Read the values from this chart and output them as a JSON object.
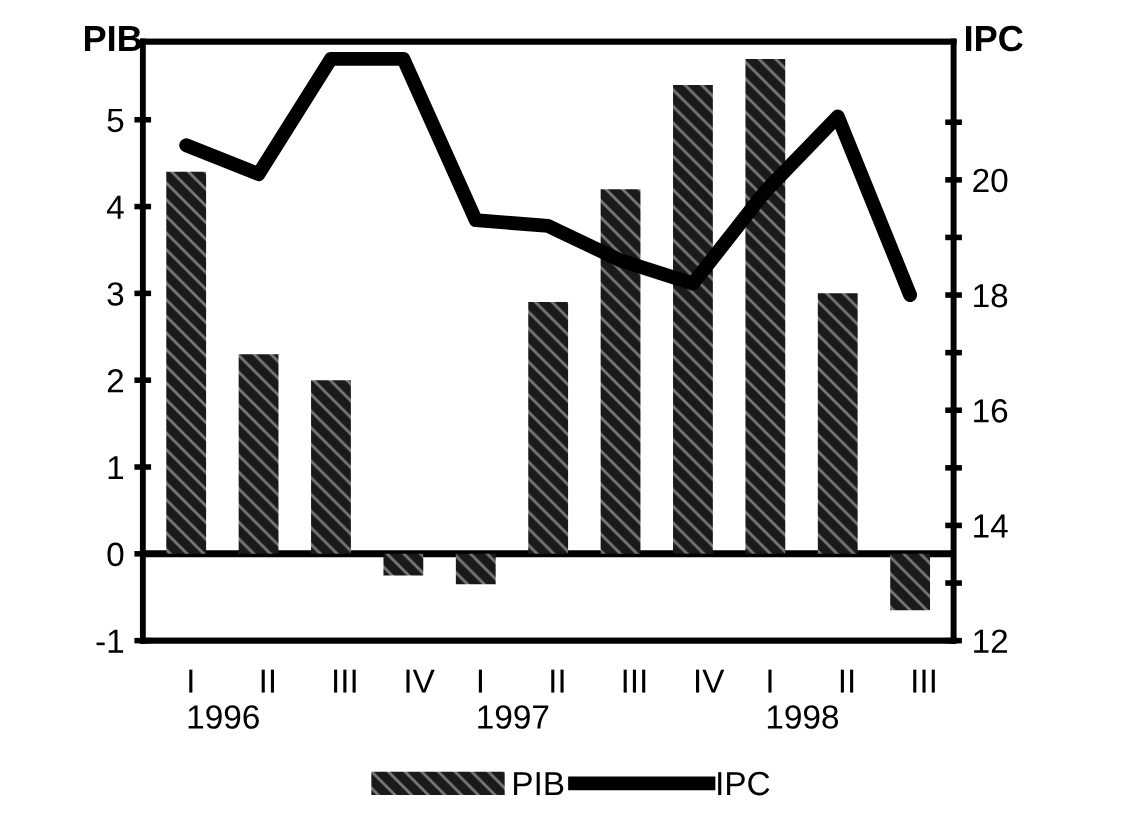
{
  "chart_data": {
    "type": "bar",
    "categories": [
      "I\n1996",
      "II",
      "III",
      "IV",
      "I\n1997",
      "II",
      "III",
      "IV",
      "I\n1998",
      "II",
      "III"
    ],
    "ylabel": "PIB",
    "y2label": "IPC",
    "series": [
      {
        "name": "PIB",
        "color": "#1a1a1a",
        "values": [
          4.4,
          2.3,
          2.0,
          -0.25,
          -0.35,
          2.9,
          4.2,
          5.4,
          5.7,
          3.0,
          -0.65
        ]
      },
      {
        "name": "IPC",
        "type": "line",
        "axis": "y2",
        "color": "#000000",
        "values": [
          20.6,
          20.1,
          22.1,
          22.1,
          19.3,
          19.2,
          18.6,
          18.2,
          19.8,
          21.1,
          18.0
        ]
      }
    ],
    "ylim": [
      -1,
      5.9
    ],
    "yticks": [
      -1,
      0,
      1,
      2,
      3,
      4,
      5
    ],
    "y2lim": [
      12,
      22.4
    ],
    "y2ticks": [
      12,
      {
        "value": 13,
        "label": null
      },
      14,
      {
        "value": 15,
        "label": null
      },
      16,
      {
        "value": 17,
        "label": null
      },
      18,
      {
        "value": 19,
        "label": null
      },
      20,
      {
        "value": 21,
        "label": null
      }
    ],
    "ref_lines": [
      {
        "axis": "y",
        "value": 0,
        "color": "#000000"
      }
    ],
    "grid": false,
    "legend": "bottom",
    "marker": "none",
    "line_style": "solid"
  }
}
